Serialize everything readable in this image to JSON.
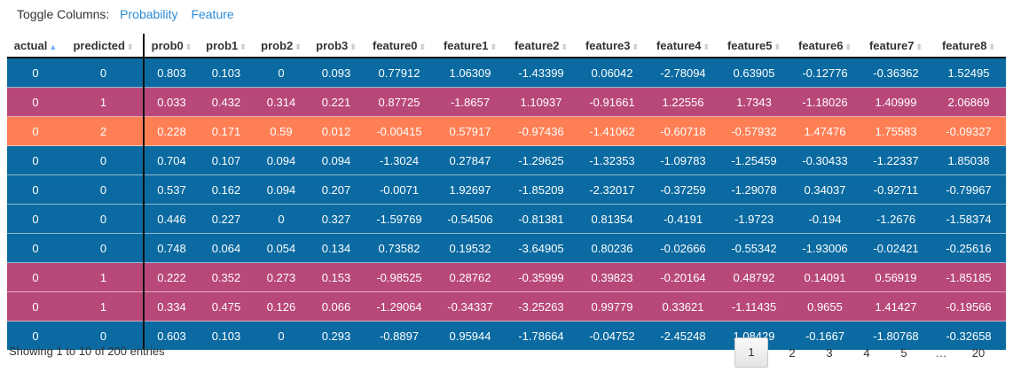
{
  "toggle": {
    "label": "Toggle Columns:",
    "links": [
      "Probability",
      "Feature"
    ]
  },
  "table": {
    "headers": [
      "actual",
      "predicted",
      "prob0",
      "prob1",
      "prob2",
      "prob3",
      "feature0",
      "feature1",
      "feature2",
      "feature3",
      "feature4",
      "feature5",
      "feature6",
      "feature7",
      "feature8"
    ],
    "sorted_column": "actual",
    "row_colors": {
      "0": "#0a6aa1",
      "1": "#b84879",
      "2": "#ff7f55"
    },
    "rows": [
      [
        "0",
        "0",
        "0.803",
        "0.103",
        "0",
        "0.093",
        "0.77912",
        "1.06309",
        "-1.43399",
        "0.06042",
        "-2.78094",
        "0.63905",
        "-0.12776",
        "-0.36362",
        "1.52495"
      ],
      [
        "0",
        "1",
        "0.033",
        "0.432",
        "0.314",
        "0.221",
        "0.87725",
        "-1.8657",
        "1.10937",
        "-0.91661",
        "1.22556",
        "1.7343",
        "-1.18026",
        "1.40999",
        "2.06869"
      ],
      [
        "0",
        "2",
        "0.228",
        "0.171",
        "0.59",
        "0.012",
        "-0.00415",
        "0.57917",
        "-0.97436",
        "-1.41062",
        "-0.60718",
        "-0.57932",
        "1.47476",
        "1.75583",
        "-0.09327"
      ],
      [
        "0",
        "0",
        "0.704",
        "0.107",
        "0.094",
        "0.094",
        "-1.3024",
        "0.27847",
        "-1.29625",
        "-1.32353",
        "-1.09783",
        "-1.25459",
        "-0.30433",
        "-1.22337",
        "1.85038"
      ],
      [
        "0",
        "0",
        "0.537",
        "0.162",
        "0.094",
        "0.207",
        "-0.0071",
        "1.92697",
        "-1.85209",
        "-2.32017",
        "-0.37259",
        "-1.29078",
        "0.34037",
        "-0.92711",
        "-0.79967"
      ],
      [
        "0",
        "0",
        "0.446",
        "0.227",
        "0",
        "0.327",
        "-1.59769",
        "-0.54506",
        "-0.81381",
        "0.81354",
        "-0.4191",
        "-1.9723",
        "-0.194",
        "-1.2676",
        "-1.58374"
      ],
      [
        "0",
        "0",
        "0.748",
        "0.064",
        "0.054",
        "0.134",
        "0.73582",
        "0.19532",
        "-3.64905",
        "0.80236",
        "-0.02666",
        "-0.55342",
        "-1.93006",
        "-0.02421",
        "-0.25616"
      ],
      [
        "0",
        "1",
        "0.222",
        "0.352",
        "0.273",
        "0.153",
        "-0.98525",
        "0.28762",
        "-0.35999",
        "0.39823",
        "-0.20164",
        "0.48792",
        "0.14091",
        "0.56919",
        "-1.85185"
      ],
      [
        "0",
        "1",
        "0.334",
        "0.475",
        "0.126",
        "0.066",
        "-1.29064",
        "-0.34337",
        "-3.25263",
        "0.99779",
        "0.33621",
        "-1.11435",
        "0.9655",
        "1.41427",
        "-0.19566"
      ],
      [
        "0",
        "0",
        "0.603",
        "0.103",
        "0",
        "0.293",
        "-0.8897",
        "0.95944",
        "-1.78664",
        "-0.04752",
        "-2.45248",
        "1.08429",
        "-0.1667",
        "-1.80768",
        "-0.32658"
      ]
    ]
  },
  "footer": {
    "info": "Showing 1 to 10 of 200 entries",
    "pages": [
      "1",
      "2",
      "3",
      "4",
      "5"
    ],
    "ellipsis": "…",
    "last_page": "20",
    "active_page": "1"
  }
}
